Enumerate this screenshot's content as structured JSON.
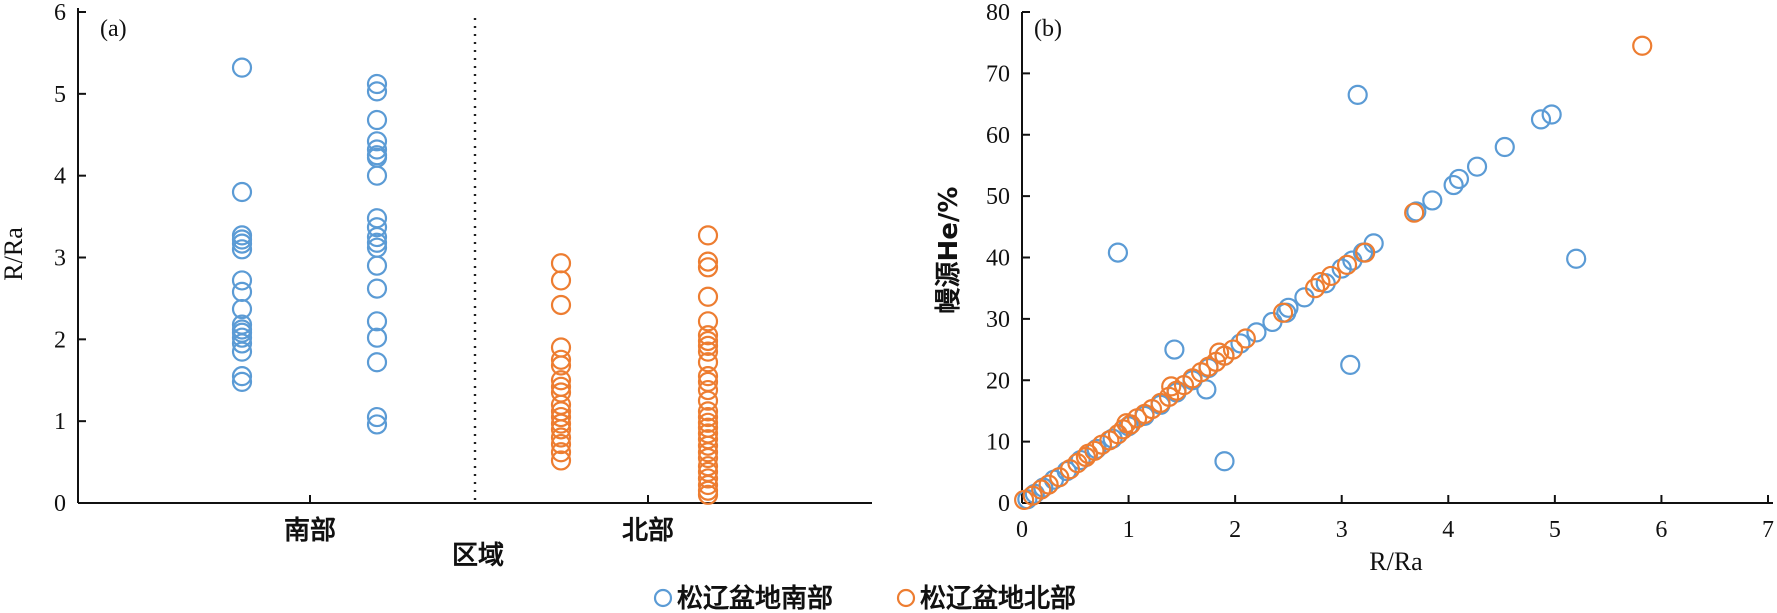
{
  "legend": [
    {
      "name": "松辽盆地南部",
      "color": "#5b9bd5"
    },
    {
      "name": "松辽盆地北部",
      "color": "#ed7d31"
    }
  ],
  "chart_data": [
    {
      "type": "scatter",
      "panel_label": "(a)",
      "xlabel": "区域",
      "ylabel": "R/Ra",
      "ylim": [
        0,
        6
      ],
      "yticks": [
        0,
        1,
        2,
        3,
        4,
        5,
        6
      ],
      "categories": [
        "南部",
        "北部"
      ],
      "divider": "dotted",
      "series": [
        {
          "name": "松辽盆地南部",
          "color": "#5b9bd5",
          "columns": [
            {
              "category": "南部",
              "values": [
                5.32,
                3.8,
                3.27,
                3.22,
                3.17,
                3.1,
                2.72,
                2.58,
                2.37,
                2.18,
                2.12,
                2.08,
                2.02,
                1.95,
                1.85,
                1.55,
                1.48
              ]
            },
            {
              "category": "南部",
              "values": [
                5.12,
                5.03,
                4.68,
                4.42,
                4.32,
                4.25,
                4.22,
                4.0,
                3.48,
                3.37,
                3.25,
                3.18,
                3.12,
                2.9,
                2.62,
                2.22,
                2.02,
                1.72,
                1.05,
                0.96
              ]
            }
          ]
        },
        {
          "name": "松辽盆地北部",
          "color": "#ed7d31",
          "columns": [
            {
              "category": "北部",
              "values": [
                2.93,
                2.72,
                2.42,
                1.9,
                1.75,
                1.68,
                1.5,
                1.42,
                1.35,
                1.2,
                1.12,
                1.05,
                0.97,
                0.9,
                0.8,
                0.72,
                0.62,
                0.52
              ]
            },
            {
              "category": "北部",
              "values": [
                3.27,
                2.95,
                2.88,
                2.52,
                2.22,
                2.05,
                1.98,
                1.92,
                1.85,
                1.72,
                1.55,
                1.48,
                1.38,
                1.25,
                1.12,
                1.05,
                0.98,
                0.92,
                0.85,
                0.78,
                0.7,
                0.62,
                0.55,
                0.45,
                0.38,
                0.3,
                0.22,
                0.15,
                0.1
              ]
            }
          ]
        }
      ]
    },
    {
      "type": "scatter",
      "panel_label": "(b)",
      "xlabel": "R/Ra",
      "ylabel": "幔源He/%",
      "xlim": [
        0,
        7
      ],
      "ylim": [
        0,
        80
      ],
      "xticks": [
        0,
        1,
        2,
        3,
        4,
        5,
        6,
        7
      ],
      "yticks": [
        0,
        10,
        20,
        30,
        40,
        50,
        60,
        70,
        80
      ],
      "series": [
        {
          "name": "松辽盆地南部",
          "color": "#5b9bd5",
          "points": [
            [
              0.05,
              0.6
            ],
            [
              0.12,
              1.5
            ],
            [
              0.2,
              2.5
            ],
            [
              0.3,
              3.8
            ],
            [
              0.42,
              5.2
            ],
            [
              0.55,
              7.0
            ],
            [
              0.7,
              8.8
            ],
            [
              0.85,
              10.5
            ],
            [
              1.0,
              12.5
            ],
            [
              1.15,
              14.2
            ],
            [
              1.3,
              16.0
            ],
            [
              1.45,
              18.0
            ],
            [
              1.6,
              20.0
            ],
            [
              1.75,
              22.0
            ],
            [
              1.9,
              24.0
            ],
            [
              2.05,
              26.0
            ],
            [
              2.2,
              27.8
            ],
            [
              2.35,
              29.5
            ],
            [
              2.5,
              31.8
            ],
            [
              2.65,
              33.5
            ],
            [
              2.85,
              35.8
            ],
            [
              3.0,
              38.2
            ],
            [
              3.1,
              39.5
            ],
            [
              3.2,
              40.8
            ],
            [
              3.3,
              42.3
            ],
            [
              3.7,
              47.5
            ],
            [
              3.85,
              49.3
            ],
            [
              4.05,
              51.8
            ],
            [
              4.1,
              52.8
            ],
            [
              4.27,
              54.8
            ],
            [
              4.53,
              58.0
            ],
            [
              4.87,
              62.5
            ],
            [
              4.97,
              63.3
            ],
            [
              5.2,
              39.8
            ],
            [
              3.15,
              66.5
            ],
            [
              3.08,
              22.5
            ],
            [
              0.9,
              40.8
            ],
            [
              1.43,
              25.0
            ],
            [
              1.73,
              18.5
            ],
            [
              1.9,
              6.8
            ],
            [
              2.48,
              31.0
            ]
          ]
        },
        {
          "name": "松辽盆地北部",
          "color": "#ed7d31",
          "points": [
            [
              0.02,
              0.5
            ],
            [
              0.1,
              1.2
            ],
            [
              0.18,
              2.2
            ],
            [
              0.25,
              3.0
            ],
            [
              0.35,
              4.2
            ],
            [
              0.45,
              5.5
            ],
            [
              0.52,
              6.5
            ],
            [
              0.6,
              7.5
            ],
            [
              0.68,
              8.5
            ],
            [
              0.75,
              9.5
            ],
            [
              0.82,
              10.2
            ],
            [
              0.9,
              11.2
            ],
            [
              0.95,
              12.0
            ],
            [
              1.02,
              12.8
            ],
            [
              1.08,
              13.8
            ],
            [
              1.15,
              14.5
            ],
            [
              1.22,
              15.3
            ],
            [
              1.3,
              16.3
            ],
            [
              1.38,
              17.3
            ],
            [
              1.45,
              18.3
            ],
            [
              1.52,
              19.2
            ],
            [
              1.6,
              20.3
            ],
            [
              1.68,
              21.3
            ],
            [
              1.75,
              22.2
            ],
            [
              1.82,
              23.0
            ],
            [
              1.9,
              24.0
            ],
            [
              1.98,
              25.0
            ],
            [
              2.1,
              26.8
            ],
            [
              2.45,
              31.0
            ],
            [
              2.75,
              35.0
            ],
            [
              2.8,
              36.0
            ],
            [
              2.9,
              37.0
            ],
            [
              3.05,
              38.8
            ],
            [
              3.22,
              40.8
            ],
            [
              3.68,
              47.3
            ],
            [
              5.82,
              74.5
            ],
            [
              1.4,
              19.0
            ],
            [
              1.85,
              24.5
            ],
            [
              0.98,
              13.0
            ],
            [
              0.62,
              8.0
            ]
          ]
        }
      ]
    }
  ]
}
